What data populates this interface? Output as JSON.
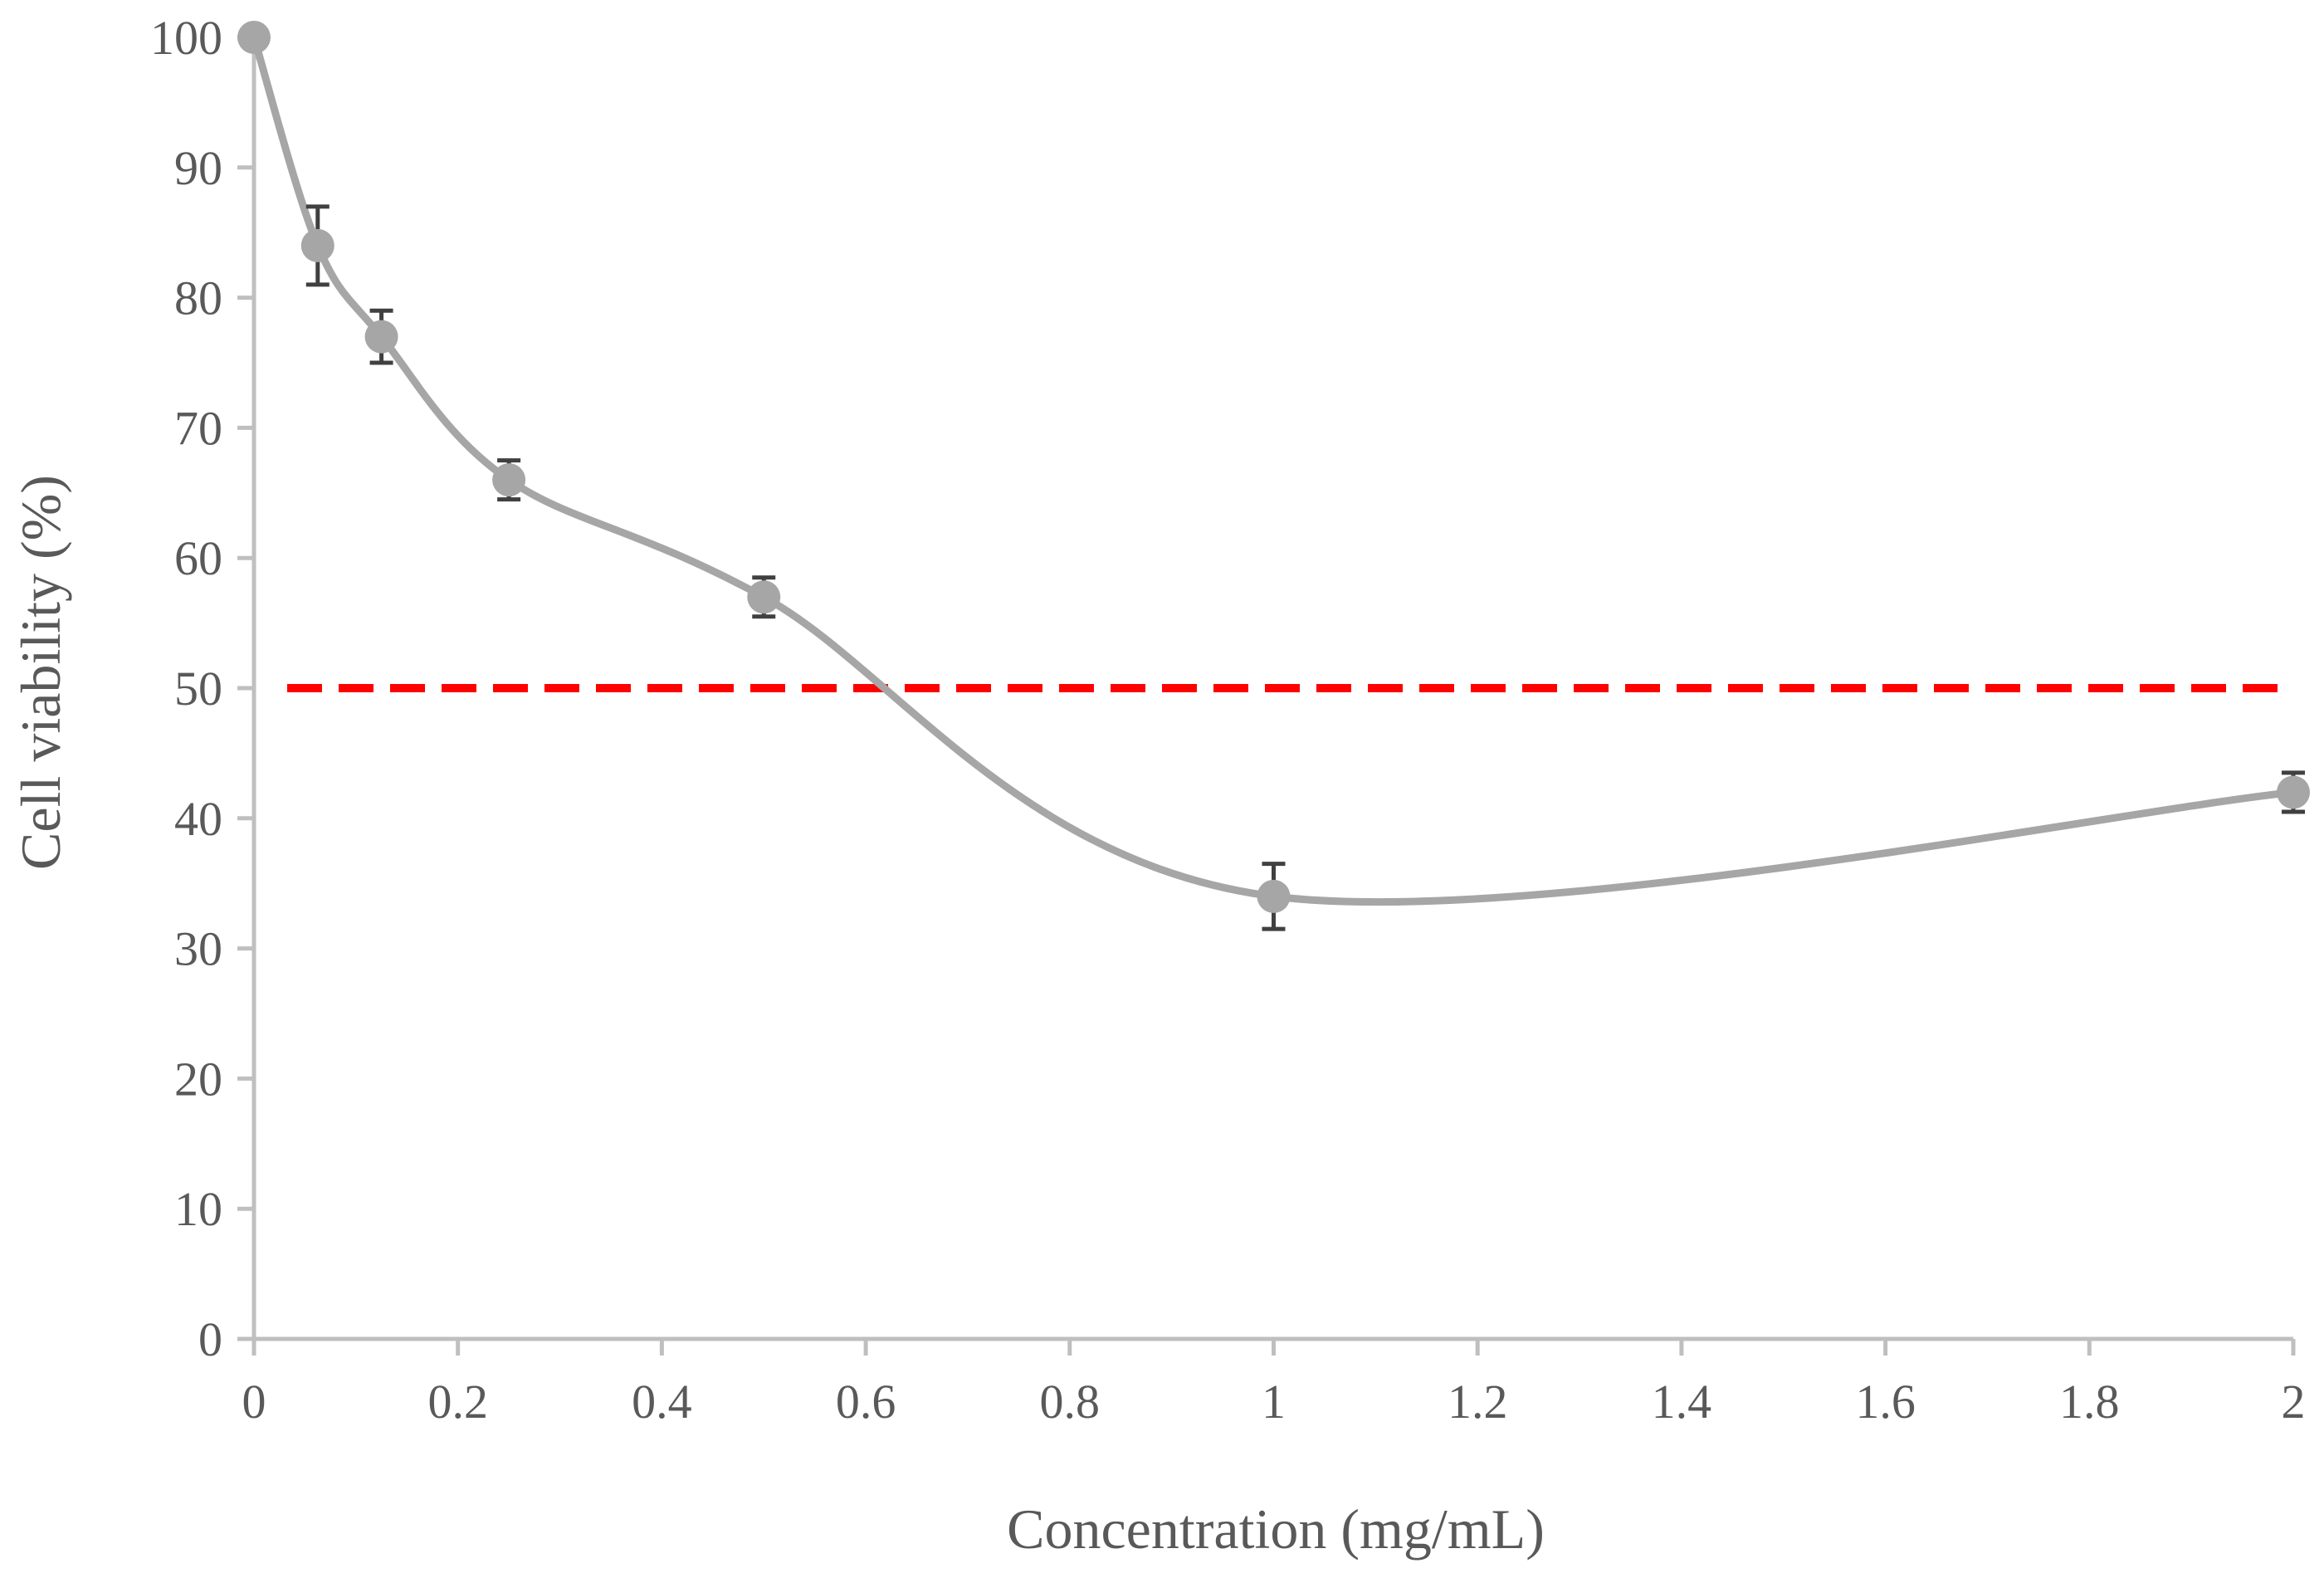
{
  "chart_data": {
    "type": "line",
    "title": "",
    "xlabel": "Concentration (mg/mL)",
    "ylabel": "Cell viability (%)",
    "xlim": [
      0,
      2
    ],
    "ylim": [
      0,
      100
    ],
    "x_ticks": [
      0,
      0.2,
      0.4,
      0.6,
      0.8,
      1,
      1.2,
      1.4,
      1.6,
      1.8,
      2
    ],
    "x_tick_labels": [
      "0",
      "0.2",
      "0.4",
      "0.6",
      "0.8",
      "1",
      "1.2",
      "1.4",
      "1.6",
      "1.8",
      "2"
    ],
    "y_ticks": [
      0,
      10,
      20,
      30,
      40,
      50,
      60,
      70,
      80,
      90,
      100
    ],
    "y_tick_labels": [
      "0",
      "10",
      "20",
      "30",
      "40",
      "50",
      "60",
      "70",
      "80",
      "90",
      "100"
    ],
    "grid": false,
    "smooth": true,
    "series": [
      {
        "name": "Cell viability",
        "color": "#a6a6a6",
        "x": [
          0,
          0.0625,
          0.125,
          0.25,
          0.5,
          1,
          2
        ],
        "y": [
          100,
          84,
          77,
          66,
          57,
          34,
          42
        ],
        "error": [
          0,
          3,
          2,
          1.5,
          1.5,
          2.5,
          1.5
        ]
      }
    ],
    "reference_line": {
      "y": 50,
      "style": "dashed",
      "color": "#ff0000"
    },
    "axis_color": "#bfbfbf",
    "errorbar_color": "#404040"
  }
}
